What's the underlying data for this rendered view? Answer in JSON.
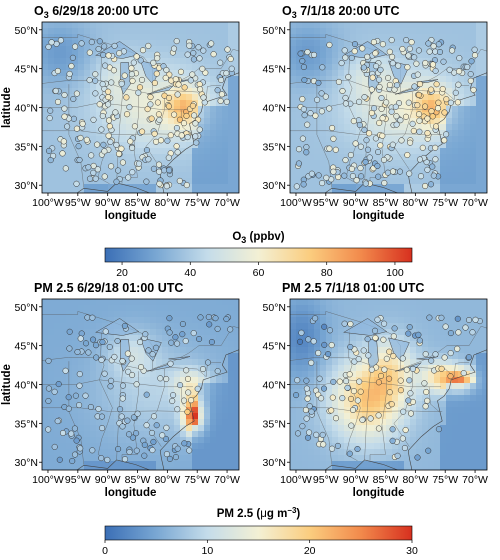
{
  "panels": [
    {
      "title_base": "O",
      "title_sub": "3",
      "title_rest": " 6/29/18 20:00 UTC",
      "field": "o3",
      "sites": "o3a"
    },
    {
      "title_base": "O",
      "title_sub": "3",
      "title_rest": " 7/1/18 20:00 UTC",
      "field": "o3",
      "sites": "o3b"
    },
    {
      "title_base": "PM 2.5",
      "title_sub": "",
      "title_rest": " 6/29/18 01:00 UTC",
      "field": "pma",
      "sites": "pma"
    },
    {
      "title_base": "PM 2.5",
      "title_sub": "",
      "title_rest": " 7/1/18 01:00 UTC",
      "field": "pmb",
      "sites": "pmb"
    }
  ],
  "axes": {
    "xlabel": "longitude",
    "ylabel": "latitude",
    "xticks": [
      "100°W",
      "95°W",
      "90°W",
      "85°W",
      "80°W",
      "75°W",
      "70°W"
    ],
    "yticks": [
      "30°N",
      "35°N",
      "40°N",
      "45°N",
      "50°N"
    ],
    "lon_range": [
      -101,
      -68
    ],
    "lat_range": [
      29,
      51
    ]
  },
  "colorbars": [
    {
      "label_prefix": "O",
      "label_sub": "3",
      "label_suffix": " (ppbv)",
      "ticks": [
        "20",
        "40",
        "60",
        "80",
        "100"
      ],
      "range": [
        15,
        105
      ]
    },
    {
      "label_prefix": "PM 2.5 (",
      "label_mu": "μ",
      "label_mid": "g m",
      "label_sup": "−3",
      "label_suffix": ")",
      "ticks": [
        "0",
        "10",
        "20",
        "30"
      ],
      "range": [
        0,
        30
      ]
    }
  ],
  "colors": {
    "colormap": [
      "#3b6fb6",
      "#79a7d3",
      "#c4dcea",
      "#f3f0d4",
      "#fbcd7f",
      "#f28a4c",
      "#d7301f"
    ],
    "ocean": "#8fb7dd",
    "border": "#555555"
  }
}
